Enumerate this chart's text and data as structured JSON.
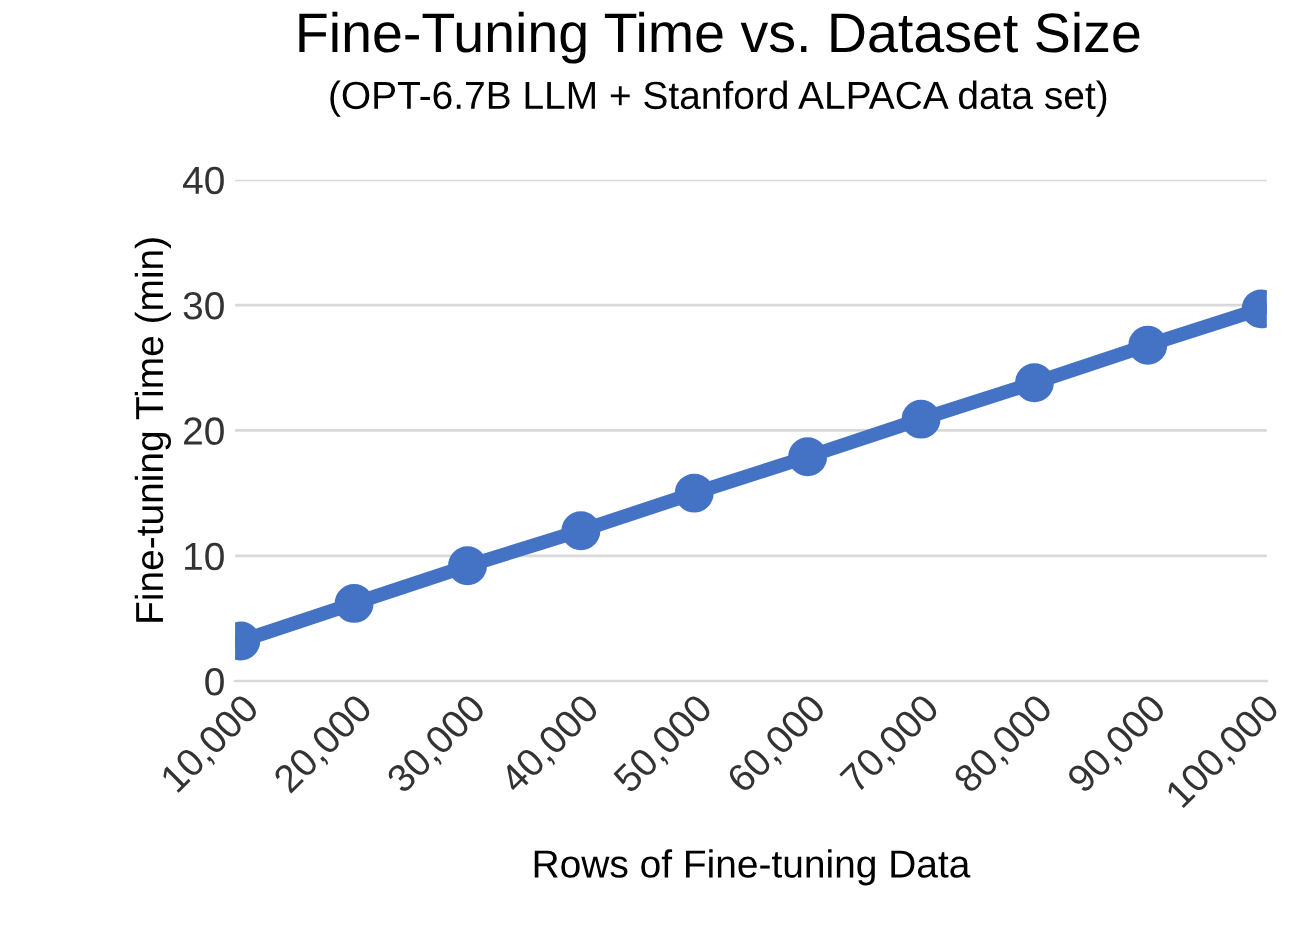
{
  "chart_data": {
    "type": "line",
    "title": "Fine-Tuning Time vs. Dataset Size",
    "subtitle": "(OPT-6.7B LLM + Stanford ALPACA data set)",
    "xlabel": "Rows of Fine-tuning Data",
    "ylabel": "Fine-tuning Time (min)",
    "categories": [
      "10,000",
      "20,000",
      "30,000",
      "40,000",
      "50,000",
      "60,000",
      "70,000",
      "80,000",
      "90,000",
      "100,000"
    ],
    "series": [
      {
        "color": "#4472c4",
        "values": [
          3.2,
          6.2,
          9.2,
          12,
          15,
          17.9,
          20.9,
          23.8,
          26.8,
          29.7
        ]
      }
    ],
    "ylim": [
      0,
      40
    ],
    "yticks": [
      0,
      10,
      20,
      30,
      40
    ],
    "grid": "y",
    "marker": "circle",
    "line_style": "solid",
    "legend": false
  }
}
